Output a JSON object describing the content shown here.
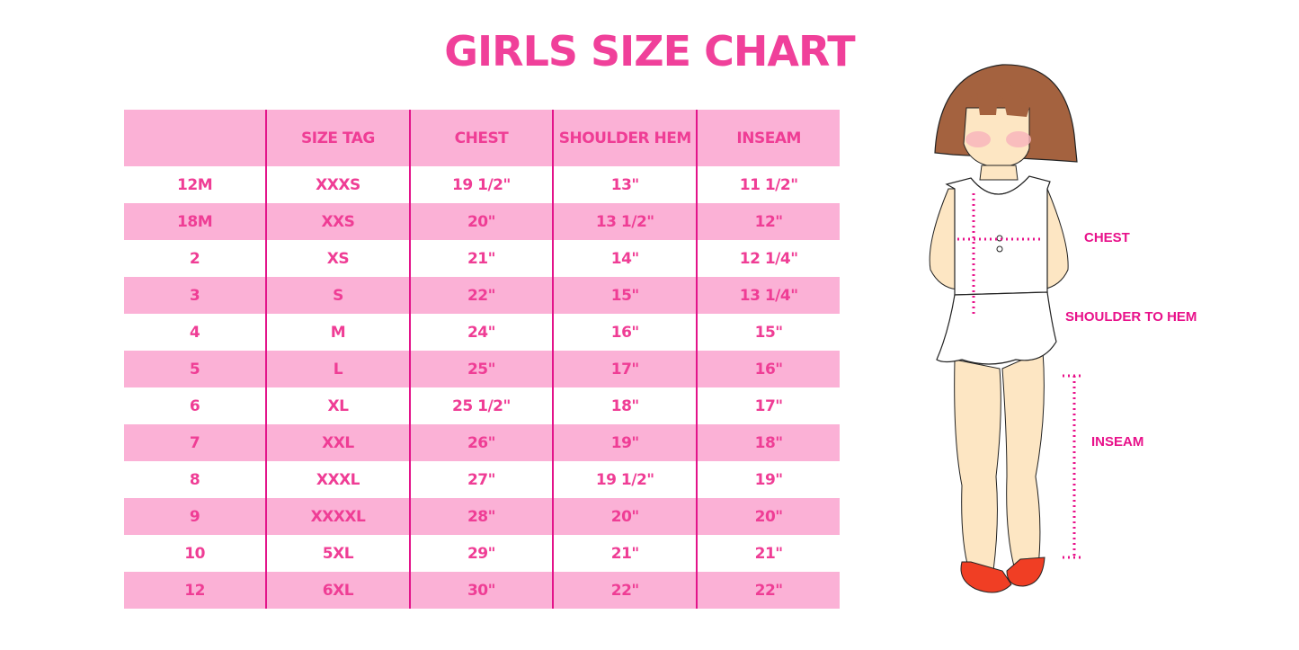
{
  "title": "GIRLS SIZE CHART",
  "table": {
    "headers": [
      "",
      "SIZE TAG",
      "CHEST",
      "SHOULDER HEM",
      "INSEAM"
    ],
    "rows": [
      [
        "12M",
        "XXXS",
        "19 1/2\"",
        "13\"",
        "11 1/2\""
      ],
      [
        "18M",
        "XXS",
        "20\"",
        "13 1/2\"",
        "12\""
      ],
      [
        "2",
        "XS",
        "21\"",
        "14\"",
        "12 1/4\""
      ],
      [
        "3",
        "S",
        "22\"",
        "15\"",
        "13 1/4\""
      ],
      [
        "4",
        "M",
        "24\"",
        "16\"",
        "15\""
      ],
      [
        "5",
        "L",
        "25\"",
        "17\"",
        "16\""
      ],
      [
        "6",
        "XL",
        "25 1/2\"",
        "18\"",
        "17\""
      ],
      [
        "7",
        "XXL",
        "26\"",
        "19\"",
        "18\""
      ],
      [
        "8",
        "XXXL",
        "27\"",
        "19 1/2\"",
        "19\""
      ],
      [
        "9",
        "XXXXL",
        "28\"",
        "20\"",
        "20\""
      ],
      [
        "10",
        "5XL",
        "29\"",
        "21\"",
        "21\""
      ],
      [
        "12",
        "6XL",
        "30\"",
        "22\"",
        "22\""
      ]
    ]
  },
  "figure": {
    "labels": {
      "chest": "CHEST",
      "shoulder": "SHOULDER TO HEM",
      "inseam": "INSEAM"
    }
  },
  "colors": {
    "accent": "#ef3d95",
    "row_pink": "#fbb1d6",
    "divider": "#e3148a",
    "label": "#e8118a"
  }
}
